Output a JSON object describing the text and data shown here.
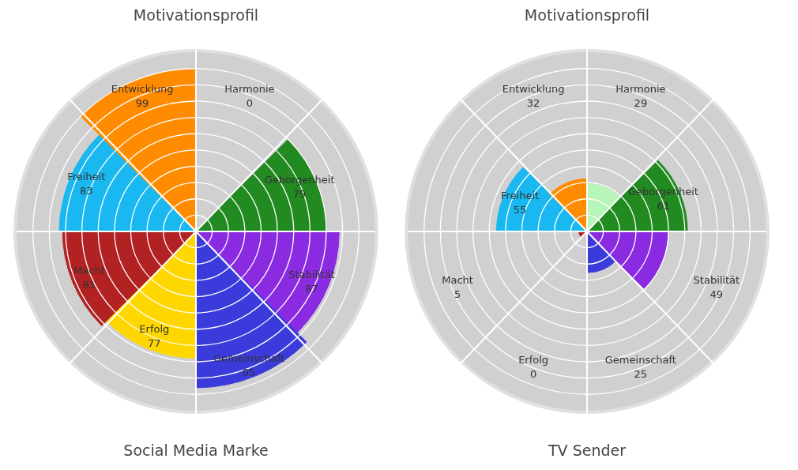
{
  "chart_data": [
    {
      "type": "other",
      "title": "Motivationsprofil",
      "xlabel": "Social Media Marke",
      "categories": [
        "Harmonie",
        "Geborgenheit",
        "Stabilität",
        "Gemeinschaft",
        "Erfolg",
        "Macht",
        "Freiheit",
        "Entwicklung"
      ],
      "values": [
        0,
        79,
        87,
        95,
        77,
        81,
        83,
        99
      ],
      "colors": [
        "#b8f5b8",
        "#218a21",
        "#8a2be2",
        "#3b3bdb",
        "#ffd700",
        "#b22222",
        "#1ab8f0",
        "#ff8c00"
      ],
      "data_labels": true
    },
    {
      "type": "other",
      "title": "Motivationsprofil",
      "xlabel": "TV Sender",
      "categories": [
        "Harmonie",
        "Geborgenheit",
        "Stabilität",
        "Gemeinschaft",
        "Erfolg",
        "Macht",
        "Freiheit",
        "Entwicklung"
      ],
      "values": [
        29,
        61,
        49,
        25,
        0,
        5,
        55,
        32
      ],
      "colors": [
        "#b8f5b8",
        "#218a21",
        "#8a2be2",
        "#3b3bdb",
        "#ffd700",
        "#b22222",
        "#1ab8f0",
        "#ff8c00"
      ],
      "data_labels": true
    }
  ]
}
